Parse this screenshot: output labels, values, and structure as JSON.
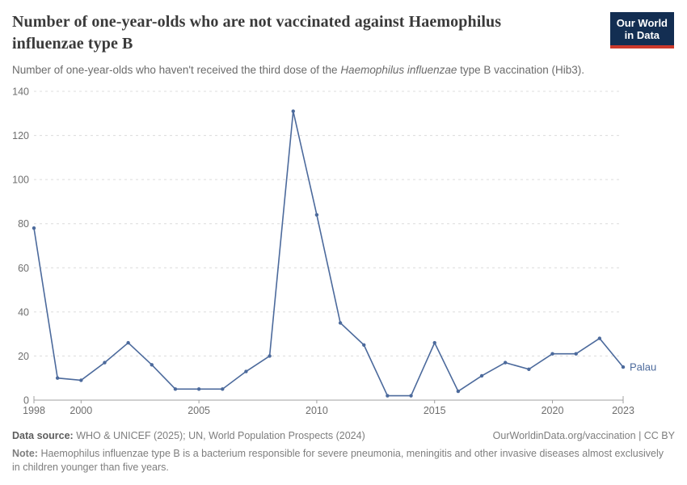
{
  "header": {
    "title": "Number of one-year-olds who are not vaccinated against Haemophilus influenzae type B",
    "subtitle_before": "Number of one-year-olds who haven't received the third dose of the ",
    "subtitle_italic": "Haemophilus influenzae",
    "subtitle_after": " type B vaccination (Hib3)."
  },
  "logo": {
    "line1": "Our World",
    "line2": "in Data",
    "bg_color": "#132e52",
    "bar_color": "#cc392b"
  },
  "chart_data": {
    "type": "line",
    "title": "Number of one-year-olds who are not vaccinated against Haemophilus influenzae type B",
    "series": [
      {
        "name": "Palau",
        "x": [
          1998,
          1999,
          2000,
          2001,
          2002,
          2003,
          2004,
          2005,
          2006,
          2007,
          2008,
          2009,
          2010,
          2011,
          2012,
          2013,
          2014,
          2015,
          2016,
          2017,
          2018,
          2019,
          2020,
          2021,
          2022,
          2023
        ],
        "values": [
          78,
          10,
          9,
          17,
          26,
          16,
          5,
          5,
          5,
          13,
          20,
          131,
          84,
          35,
          25,
          2,
          2,
          26,
          4,
          11,
          17,
          14,
          21,
          21,
          28,
          15
        ]
      }
    ],
    "xlim": [
      1998,
      2023
    ],
    "ylim": [
      0,
      140
    ],
    "xticks": [
      1998,
      2000,
      2005,
      2010,
      2015,
      2020,
      2023
    ],
    "yticks": [
      0,
      20,
      40,
      60,
      80,
      100,
      120,
      140
    ],
    "grid": "horizontal-dashed",
    "legend_position": "end-of-line-label",
    "line_color": "#4c6a9c",
    "grid_color": "#dcdcdc",
    "axis_color": "#a0a0a0",
    "tick_label_color": "#6f6f6f"
  },
  "footer": {
    "source_label": "Data source:",
    "source_value": "WHO & UNICEF (2025); UN, World Population Prospects (2024)",
    "license": "OurWorldinData.org/vaccination | CC BY",
    "note_label": "Note:",
    "note_value": "Haemophilus influenzae type B is a bacterium responsible for severe pneumonia, meningitis and other invasive diseases almost exclusively in children younger than five years."
  }
}
